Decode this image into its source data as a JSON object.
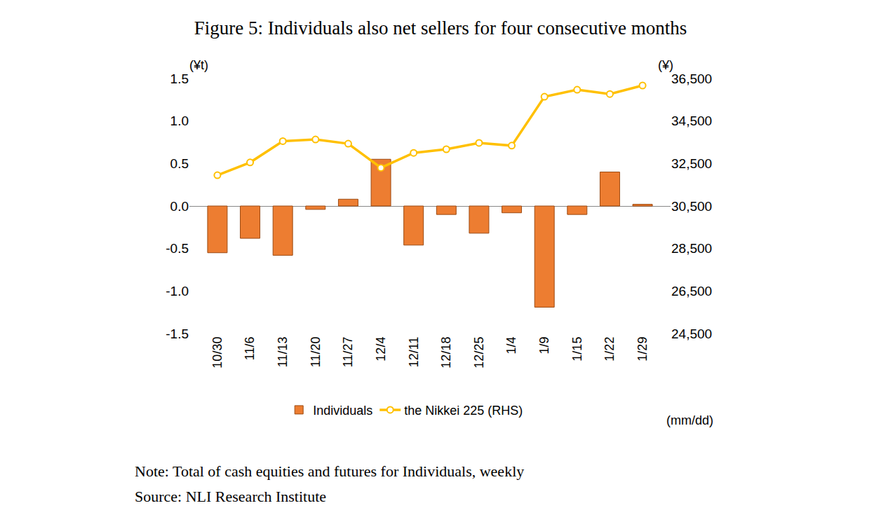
{
  "chart_data": {
    "type": "bar",
    "title": "Figure 5: Individuals also net sellers for four consecutive months",
    "categories": [
      "10/30",
      "11/6",
      "11/13",
      "11/20",
      "11/27",
      "12/4",
      "12/11",
      "12/18",
      "12/25",
      "1/4",
      "1/9",
      "1/15",
      "1/22",
      "1/29"
    ],
    "series": [
      {
        "name": "Individuals",
        "type": "bar",
        "color": "#ED7D31",
        "values": [
          -0.55,
          -0.38,
          -0.58,
          -0.04,
          0.08,
          0.55,
          -0.46,
          -0.1,
          -0.32,
          -0.08,
          -1.19,
          -0.1,
          0.4,
          0.02
        ]
      },
      {
        "name": "the Nikkei 225 (RHS)",
        "type": "line",
        "axis": "y2",
        "color": "#FFC000",
        "marker": "circle",
        "values": [
          31950,
          32550,
          33550,
          33630,
          33430,
          32300,
          33000,
          33170,
          33470,
          33340,
          35640,
          35970,
          35770,
          36170
        ]
      }
    ],
    "y_label": "(¥t)",
    "y2_label": "(¥)",
    "x_label": "(mm/dd)",
    "ylim": [
      -1.5,
      1.5
    ],
    "yticks": [
      -1.5,
      {
        "value": -1.0,
        "label": "-1.0"
      },
      -0.5,
      {
        "value": 0,
        "label": "0.0"
      },
      0.5,
      {
        "value": 1.0,
        "label": "1.0"
      },
      1.5
    ],
    "y2lim": [
      24500,
      36500
    ],
    "y2ticks": [
      {
        "value": 24500,
        "label": "24,500"
      },
      {
        "value": 26500,
        "label": "26,500"
      },
      {
        "value": 28500,
        "label": "28,500"
      },
      {
        "value": 30500,
        "label": "30,500"
      },
      {
        "value": 32500,
        "label": "32,500"
      },
      {
        "value": 34500,
        "label": "34,500"
      },
      {
        "value": 36500,
        "label": "36,500"
      }
    ],
    "grid": false,
    "legend": "bottom",
    "notes": [
      "Note: Total of cash equities and futures for Individuals, weekly",
      "Source: NLI Research Institute"
    ]
  }
}
